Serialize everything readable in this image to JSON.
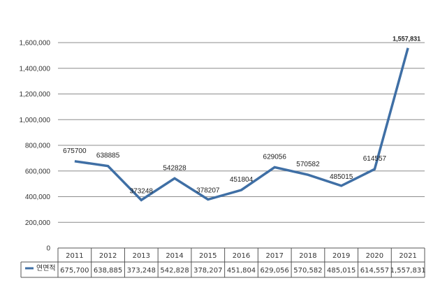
{
  "chart_data": {
    "type": "line",
    "categories": [
      "2011",
      "2012",
      "2013",
      "2014",
      "2015",
      "2016",
      "2017",
      "2018",
      "2019",
      "2020",
      "2021"
    ],
    "series": [
      {
        "name": "연면적",
        "color": "#3f6fa5",
        "values": [
          675700,
          638885,
          373248,
          542828,
          378207,
          451804,
          629056,
          570582,
          485015,
          614557,
          1557831
        ],
        "point_labels": [
          "675700",
          "638885",
          "373248",
          "542828",
          "378207",
          "451804",
          "629056",
          "570582",
          "485015",
          "614557",
          "1,557,831"
        ],
        "table_values": [
          "675,700",
          "638,885",
          "373,248",
          "542,828",
          "378,207",
          "451,804",
          "629,056",
          "570,582",
          "485,015",
          "614,557",
          "1,557,831"
        ]
      }
    ],
    "y_ticks": [
      0,
      200000,
      400000,
      600000,
      800000,
      1000000,
      1200000,
      1400000,
      1600000
    ],
    "y_tick_labels": [
      "0",
      "200,000",
      "400,000",
      "600,000",
      "800,000",
      "1,000,000",
      "1,200,000",
      "1,400,000",
      "1,600,000"
    ],
    "ylim": [
      0,
      1600000
    ],
    "grid": true,
    "legend": "data-table-left",
    "title": "",
    "xlabel": "",
    "ylabel": ""
  }
}
